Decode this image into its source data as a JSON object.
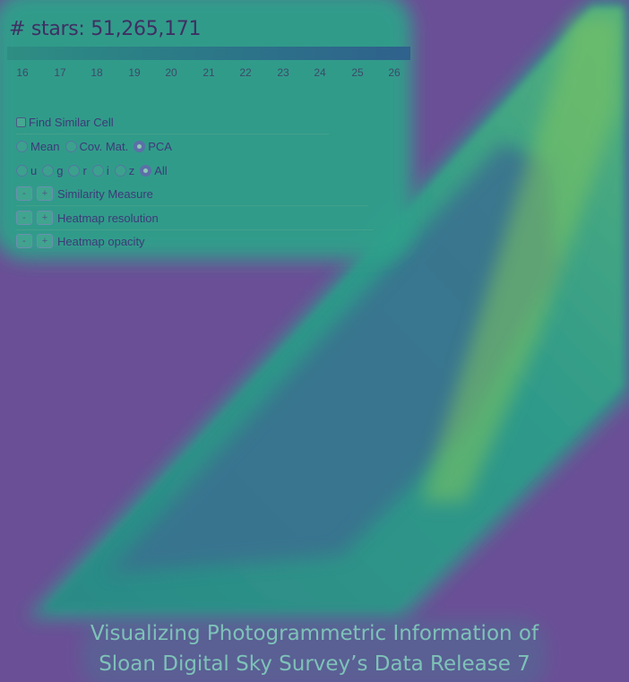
{
  "header": {
    "star_count": "# stars: 51,265,171",
    "colorbar_ticks": [
      "16",
      "17",
      "18",
      "19",
      "20",
      "21",
      "22",
      "23",
      "24",
      "25",
      "26"
    ]
  },
  "controls": {
    "find_similar": "Find Similar Cell",
    "stat_options": [
      {
        "label": "Mean",
        "selected": false
      },
      {
        "label": "Cov. Mat.",
        "selected": false
      },
      {
        "label": "PCA",
        "selected": true
      }
    ],
    "band_options": [
      {
        "label": "u",
        "selected": false
      },
      {
        "label": "g",
        "selected": false
      },
      {
        "label": "r",
        "selected": false
      },
      {
        "label": "i",
        "selected": false
      },
      {
        "label": "z",
        "selected": false
      },
      {
        "label": "All",
        "selected": true
      }
    ],
    "minus": "-",
    "plus": "+",
    "similarity_measure": "Similarity Measure",
    "heatmap_resolution": "Heatmap resolution",
    "heatmap_opacity": "Heatmap opacity"
  },
  "footer": {
    "line1": "Visualizing Photogrammetric Information of",
    "line2": "Sloan Digital Sky Survey’s Data Release 7"
  },
  "colors": {
    "background": "#6b4f96",
    "heat_low": "#3e6e8f",
    "heat_mid": "#2f9b8a",
    "heat_high": "#8fd35a"
  }
}
